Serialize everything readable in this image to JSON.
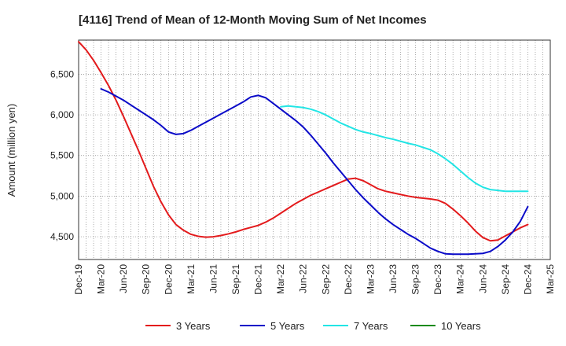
{
  "chart_data": {
    "type": "line",
    "title": "[4116]  Trend of Mean of 12-Month Moving Sum of Net Incomes",
    "ylabel": "Amount (million yen)",
    "xlabel": "",
    "x_start": "2019-12",
    "x_end": "2025-03",
    "x_ticks": [
      "Dec-19",
      "Mar-20",
      "Jun-20",
      "Sep-20",
      "Dec-20",
      "Mar-21",
      "Jun-21",
      "Sep-21",
      "Dec-21",
      "Mar-22",
      "Jun-22",
      "Sep-22",
      "Dec-22",
      "Mar-23",
      "Jun-23",
      "Sep-23",
      "Dec-23",
      "Mar-24",
      "Jun-24",
      "Sep-24",
      "Dec-24",
      "Mar-25"
    ],
    "y_ticks": [
      4500,
      5000,
      5500,
      6000,
      6500
    ],
    "y_tick_labels": [
      "4,500",
      "5,000",
      "5,500",
      "6,000",
      "6,500"
    ],
    "ylim": [
      4220,
      6920
    ],
    "grid": true,
    "legend_position": "bottom",
    "series": [
      {
        "name": "3 Years",
        "color": "#e31a1c",
        "points": [
          [
            "2019-12",
            6900
          ],
          [
            "2020-01",
            6800
          ],
          [
            "2020-02",
            6670
          ],
          [
            "2020-03",
            6520
          ],
          [
            "2020-04",
            6360
          ],
          [
            "2020-05",
            6180
          ],
          [
            "2020-06",
            5980
          ],
          [
            "2020-07",
            5770
          ],
          [
            "2020-08",
            5560
          ],
          [
            "2020-09",
            5340
          ],
          [
            "2020-10",
            5120
          ],
          [
            "2020-11",
            4930
          ],
          [
            "2020-12",
            4770
          ],
          [
            "2021-01",
            4650
          ],
          [
            "2021-02",
            4580
          ],
          [
            "2021-03",
            4530
          ],
          [
            "2021-04",
            4505
          ],
          [
            "2021-05",
            4495
          ],
          [
            "2021-06",
            4500
          ],
          [
            "2021-07",
            4515
          ],
          [
            "2021-08",
            4535
          ],
          [
            "2021-09",
            4560
          ],
          [
            "2021-10",
            4590
          ],
          [
            "2021-11",
            4615
          ],
          [
            "2021-12",
            4640
          ],
          [
            "2022-01",
            4680
          ],
          [
            "2022-02",
            4730
          ],
          [
            "2022-03",
            4790
          ],
          [
            "2022-04",
            4850
          ],
          [
            "2022-05",
            4910
          ],
          [
            "2022-06",
            4960
          ],
          [
            "2022-07",
            5010
          ],
          [
            "2022-08",
            5050
          ],
          [
            "2022-09",
            5090
          ],
          [
            "2022-10",
            5130
          ],
          [
            "2022-11",
            5170
          ],
          [
            "2022-12",
            5210
          ],
          [
            "2023-01",
            5220
          ],
          [
            "2023-02",
            5190
          ],
          [
            "2023-03",
            5140
          ],
          [
            "2023-04",
            5090
          ],
          [
            "2023-05",
            5060
          ],
          [
            "2023-06",
            5040
          ],
          [
            "2023-07",
            5020
          ],
          [
            "2023-08",
            5000
          ],
          [
            "2023-09",
            4985
          ],
          [
            "2023-10",
            4975
          ],
          [
            "2023-11",
            4965
          ],
          [
            "2023-12",
            4950
          ],
          [
            "2024-01",
            4910
          ],
          [
            "2024-02",
            4840
          ],
          [
            "2024-03",
            4760
          ],
          [
            "2024-04",
            4670
          ],
          [
            "2024-05",
            4570
          ],
          [
            "2024-06",
            4490
          ],
          [
            "2024-07",
            4450
          ],
          [
            "2024-08",
            4460
          ],
          [
            "2024-09",
            4510
          ],
          [
            "2024-10",
            4560
          ],
          [
            "2024-11",
            4610
          ],
          [
            "2024-12",
            4650
          ]
        ]
      },
      {
        "name": "5 Years",
        "color": "#0a0ac8",
        "points": [
          [
            "2020-03",
            6320
          ],
          [
            "2020-04",
            6280
          ],
          [
            "2020-05",
            6230
          ],
          [
            "2020-06",
            6180
          ],
          [
            "2020-07",
            6120
          ],
          [
            "2020-08",
            6060
          ],
          [
            "2020-09",
            6000
          ],
          [
            "2020-10",
            5940
          ],
          [
            "2020-11",
            5870
          ],
          [
            "2020-12",
            5790
          ],
          [
            "2021-01",
            5760
          ],
          [
            "2021-02",
            5770
          ],
          [
            "2021-03",
            5810
          ],
          [
            "2021-04",
            5860
          ],
          [
            "2021-05",
            5910
          ],
          [
            "2021-06",
            5960
          ],
          [
            "2021-07",
            6010
          ],
          [
            "2021-08",
            6060
          ],
          [
            "2021-09",
            6110
          ],
          [
            "2021-10",
            6160
          ],
          [
            "2021-11",
            6220
          ],
          [
            "2021-12",
            6240
          ],
          [
            "2022-01",
            6210
          ],
          [
            "2022-02",
            6140
          ],
          [
            "2022-03",
            6070
          ],
          [
            "2022-04",
            6000
          ],
          [
            "2022-05",
            5930
          ],
          [
            "2022-06",
            5850
          ],
          [
            "2022-07",
            5750
          ],
          [
            "2022-08",
            5640
          ],
          [
            "2022-09",
            5530
          ],
          [
            "2022-10",
            5410
          ],
          [
            "2022-11",
            5300
          ],
          [
            "2022-12",
            5190
          ],
          [
            "2023-01",
            5080
          ],
          [
            "2023-02",
            4980
          ],
          [
            "2023-03",
            4890
          ],
          [
            "2023-04",
            4800
          ],
          [
            "2023-05",
            4720
          ],
          [
            "2023-06",
            4650
          ],
          [
            "2023-07",
            4590
          ],
          [
            "2023-08",
            4530
          ],
          [
            "2023-09",
            4480
          ],
          [
            "2023-10",
            4420
          ],
          [
            "2023-11",
            4360
          ],
          [
            "2023-12",
            4320
          ],
          [
            "2024-01",
            4290
          ],
          [
            "2024-02",
            4285
          ],
          [
            "2024-03",
            4285
          ],
          [
            "2024-04",
            4285
          ],
          [
            "2024-05",
            4290
          ],
          [
            "2024-06",
            4295
          ],
          [
            "2024-07",
            4320
          ],
          [
            "2024-08",
            4380
          ],
          [
            "2024-09",
            4460
          ],
          [
            "2024-10",
            4560
          ],
          [
            "2024-11",
            4690
          ],
          [
            "2024-12",
            4870
          ]
        ]
      },
      {
        "name": "7 Years",
        "color": "#22e5e5",
        "points": [
          [
            "2022-03",
            6100
          ],
          [
            "2022-04",
            6110
          ],
          [
            "2022-05",
            6100
          ],
          [
            "2022-06",
            6090
          ],
          [
            "2022-07",
            6070
          ],
          [
            "2022-08",
            6040
          ],
          [
            "2022-09",
            6000
          ],
          [
            "2022-10",
            5950
          ],
          [
            "2022-11",
            5900
          ],
          [
            "2022-12",
            5860
          ],
          [
            "2023-01",
            5820
          ],
          [
            "2023-02",
            5790
          ],
          [
            "2023-03",
            5770
          ],
          [
            "2023-04",
            5745
          ],
          [
            "2023-05",
            5720
          ],
          [
            "2023-06",
            5700
          ],
          [
            "2023-07",
            5675
          ],
          [
            "2023-08",
            5650
          ],
          [
            "2023-09",
            5630
          ],
          [
            "2023-10",
            5600
          ],
          [
            "2023-11",
            5570
          ],
          [
            "2023-12",
            5520
          ],
          [
            "2024-01",
            5460
          ],
          [
            "2024-02",
            5390
          ],
          [
            "2024-03",
            5310
          ],
          [
            "2024-04",
            5230
          ],
          [
            "2024-05",
            5160
          ],
          [
            "2024-06",
            5110
          ],
          [
            "2024-07",
            5080
          ],
          [
            "2024-08",
            5070
          ],
          [
            "2024-09",
            5060
          ],
          [
            "2024-10",
            5060
          ],
          [
            "2024-11",
            5060
          ],
          [
            "2024-12",
            5060
          ]
        ]
      },
      {
        "name": "10 Years",
        "color": "#1a8a1a",
        "points": []
      }
    ]
  }
}
